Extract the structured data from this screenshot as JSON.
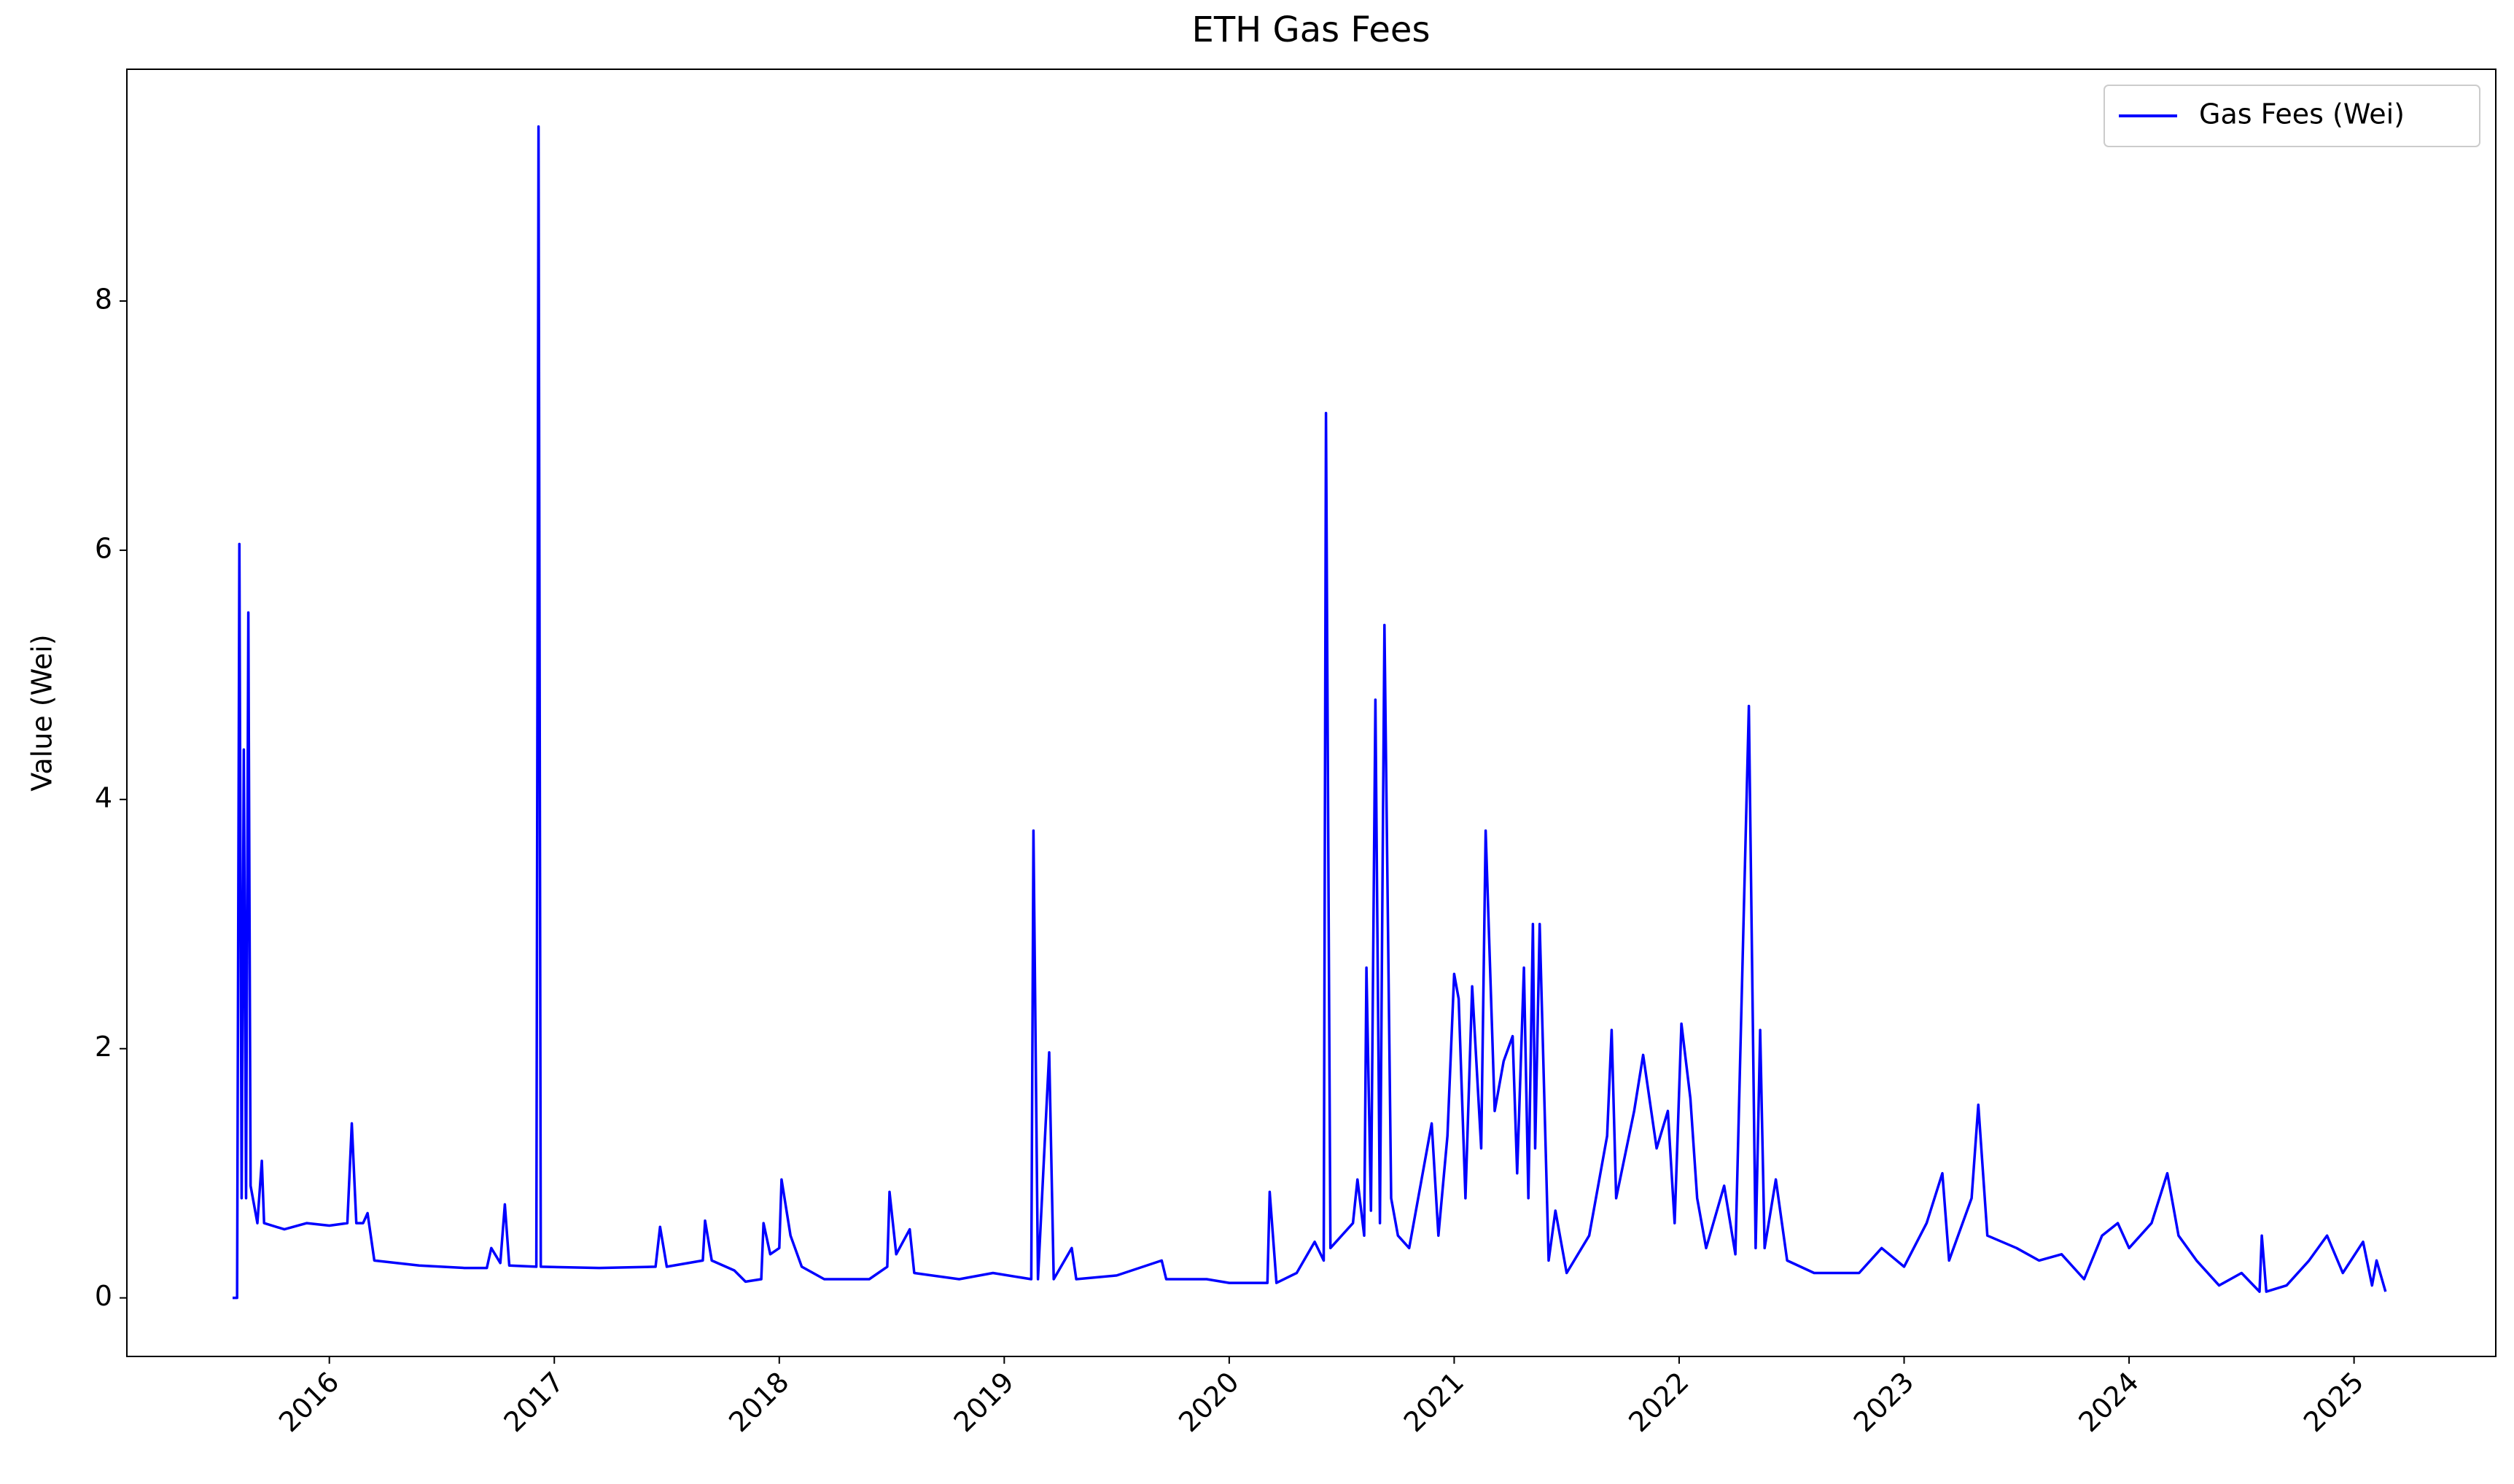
{
  "chart_data": {
    "type": "line",
    "title": "ETH Gas Fees",
    "ylabel": "Value (Wei)",
    "xlim": [
      2015.1,
      2025.63
    ],
    "ylim": [
      -0.47,
      9.86
    ],
    "xticks": [
      2016,
      2017,
      2018,
      2019,
      2020,
      2021,
      2022,
      2023,
      2024,
      2025
    ],
    "yticks": [
      0,
      2,
      4,
      6,
      8
    ],
    "grid": false,
    "legend": "upper right",
    "x": [
      2015.57,
      2015.59,
      2015.6,
      2015.61,
      2015.62,
      2015.63,
      2015.64,
      2015.65,
      2015.68,
      2015.7,
      2015.71,
      2015.8,
      2015.9,
      2016.0,
      2016.08,
      2016.1,
      2016.12,
      2016.15,
      2016.17,
      2016.2,
      2016.4,
      2016.6,
      2016.7,
      2016.72,
      2016.76,
      2016.78,
      2016.8,
      2016.92,
      2016.93,
      2016.94,
      2017.2,
      2017.45,
      2017.47,
      2017.5,
      2017.66,
      2017.67,
      2017.7,
      2017.8,
      2017.85,
      2017.92,
      2017.93,
      2017.96,
      2018.0,
      2018.01,
      2018.05,
      2018.1,
      2018.2,
      2018.4,
      2018.48,
      2018.49,
      2018.52,
      2018.58,
      2018.6,
      2018.8,
      2018.95,
      2019.12,
      2019.13,
      2019.15,
      2019.2,
      2019.22,
      2019.3,
      2019.32,
      2019.5,
      2019.7,
      2019.72,
      2019.9,
      2020.0,
      2020.17,
      2020.18,
      2020.21,
      2020.3,
      2020.38,
      2020.42,
      2020.43,
      2020.45,
      2020.55,
      2020.57,
      2020.6,
      2020.61,
      2020.63,
      2020.65,
      2020.67,
      2020.69,
      2020.72,
      2020.75,
      2020.8,
      2020.9,
      2020.93,
      2020.97,
      2021.0,
      2021.02,
      2021.05,
      2021.08,
      2021.12,
      2021.14,
      2021.18,
      2021.22,
      2021.26,
      2021.28,
      2021.31,
      2021.33,
      2021.35,
      2021.36,
      2021.38,
      2021.42,
      2021.45,
      2021.5,
      2021.6,
      2021.68,
      2021.7,
      2021.72,
      2021.8,
      2021.84,
      2021.9,
      2021.95,
      2021.98,
      2022.01,
      2022.05,
      2022.08,
      2022.12,
      2022.2,
      2022.25,
      2022.31,
      2022.34,
      2022.36,
      2022.38,
      2022.43,
      2022.48,
      2022.6,
      2022.8,
      2022.9,
      2023.0,
      2023.1,
      2023.17,
      2023.2,
      2023.3,
      2023.33,
      2023.37,
      2023.5,
      2023.6,
      2023.7,
      2023.8,
      2023.88,
      2023.95,
      2024.0,
      2024.1,
      2024.17,
      2024.22,
      2024.3,
      2024.4,
      2024.5,
      2024.58,
      2024.59,
      2024.61,
      2024.7,
      2024.8,
      2024.88,
      2024.95,
      2025.04,
      2025.08,
      2025.1,
      2025.14
    ],
    "series": [
      {
        "name": "Gas Fees (Wei)",
        "color": "#0000ff",
        "values": [
          0,
          0,
          6.05,
          0.8,
          4.4,
          0.8,
          5.5,
          0.9,
          0.6,
          1.1,
          0.6,
          0.55,
          0.6,
          0.58,
          0.6,
          1.4,
          0.6,
          0.6,
          0.68,
          0.3,
          0.26,
          0.24,
          0.24,
          0.4,
          0.28,
          0.75,
          0.26,
          0.25,
          9.4,
          0.25,
          0.24,
          0.25,
          0.57,
          0.25,
          0.3,
          0.62,
          0.3,
          0.22,
          0.13,
          0.15,
          0.6,
          0.35,
          0.4,
          0.95,
          0.5,
          0.25,
          0.15,
          0.15,
          0.25,
          0.85,
          0.35,
          0.55,
          0.2,
          0.15,
          0.2,
          0.15,
          3.75,
          0.15,
          1.97,
          0.15,
          0.4,
          0.15,
          0.18,
          0.3,
          0.15,
          0.15,
          0.12,
          0.12,
          0.85,
          0.12,
          0.2,
          0.45,
          0.3,
          7.1,
          0.4,
          0.6,
          0.95,
          0.5,
          2.65,
          0.7,
          4.8,
          0.6,
          5.4,
          0.8,
          0.5,
          0.4,
          1.4,
          0.5,
          1.3,
          2.6,
          2.4,
          0.8,
          2.5,
          1.2,
          3.75,
          1.5,
          1.9,
          2.1,
          1.0,
          2.65,
          0.8,
          3.0,
          1.2,
          3.0,
          0.3,
          0.7,
          0.2,
          0.5,
          1.3,
          2.15,
          0.8,
          1.5,
          1.95,
          1.2,
          1.5,
          0.6,
          2.2,
          1.6,
          0.8,
          0.4,
          0.9,
          0.35,
          4.75,
          0.4,
          2.15,
          0.4,
          0.95,
          0.3,
          0.2,
          0.2,
          0.4,
          0.25,
          0.6,
          1.0,
          0.3,
          0.8,
          1.55,
          0.5,
          0.4,
          0.3,
          0.35,
          0.15,
          0.5,
          0.6,
          0.4,
          0.6,
          1.0,
          0.5,
          0.3,
          0.1,
          0.2,
          0.05,
          0.5,
          0.05,
          0.1,
          0.3,
          0.5,
          0.2,
          0.45,
          0.1,
          0.3,
          0.05
        ]
      }
    ]
  }
}
